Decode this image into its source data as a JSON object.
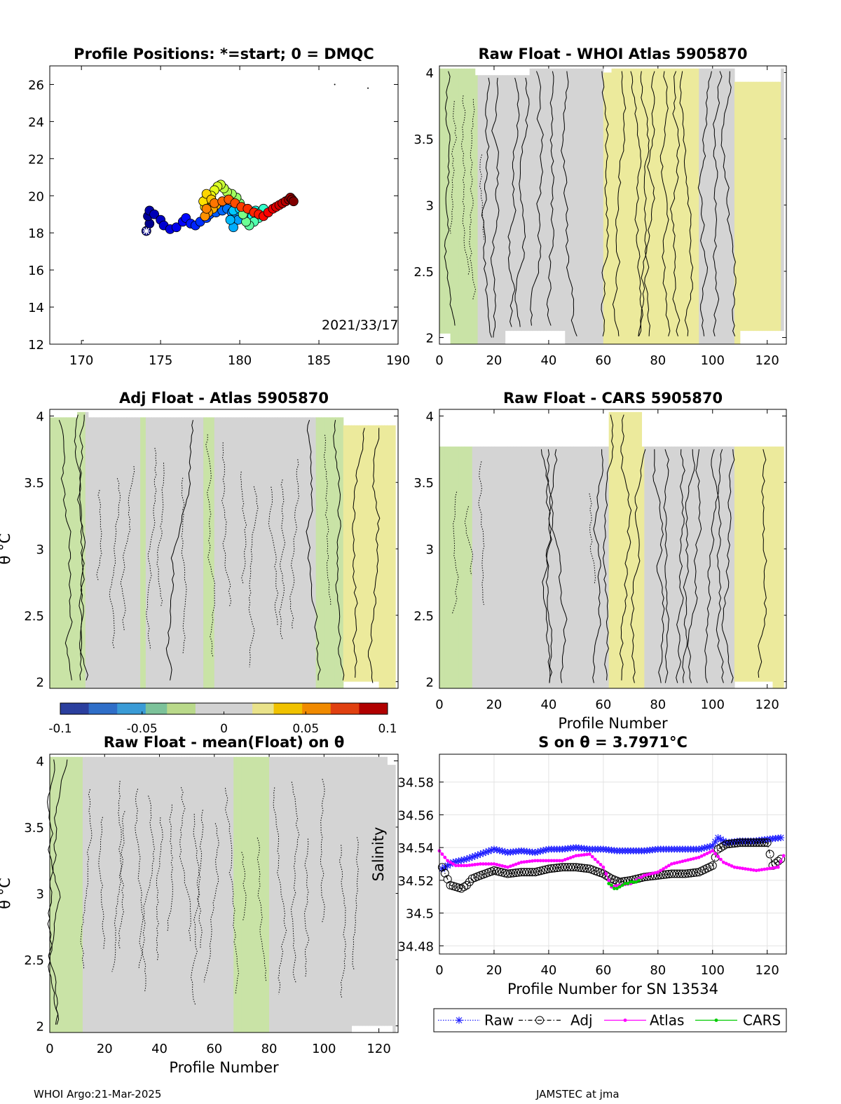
{
  "figure": {
    "footer_left": "WHOI Argo:21-Mar-2025",
    "footer_right": "JAMSTEC at jma"
  },
  "colors": {
    "raw": "#2222ff",
    "adj": "#000000",
    "atlas": "#ff00ff",
    "cars": "#00cc00",
    "field_gray": "#d4d4d4",
    "field_green": "#c9e3a6",
    "field_yellow": "#ecea9c"
  },
  "chart_data": [
    {
      "id": "positions",
      "type": "scatter",
      "title": "Profile Positions: *=start; 0 = DMQC",
      "xlim": [
        168,
        190
      ],
      "ylim": [
        12,
        27
      ],
      "xticks": [
        170,
        175,
        180,
        185,
        190
      ],
      "yticks": [
        12,
        14,
        16,
        18,
        20,
        22,
        24,
        26
      ],
      "annotation": "2021/33/17",
      "start_marker": {
        "x": 174.1,
        "y": 18.1
      },
      "track": [
        [
          174.1,
          18.1
        ],
        [
          174.3,
          18.5
        ],
        [
          174.2,
          18.9
        ],
        [
          174.3,
          19.2
        ],
        [
          174.6,
          19.0
        ],
        [
          175.0,
          18.7
        ],
        [
          175.2,
          18.4
        ],
        [
          175.6,
          18.2
        ],
        [
          176.0,
          18.3
        ],
        [
          176.4,
          18.6
        ],
        [
          176.6,
          18.8
        ],
        [
          176.9,
          18.5
        ],
        [
          177.2,
          18.4
        ],
        [
          177.5,
          18.6
        ],
        [
          177.9,
          18.8
        ],
        [
          178.1,
          19.0
        ],
        [
          178.5,
          19.1
        ],
        [
          178.9,
          19.2
        ],
        [
          179.2,
          19.3
        ],
        [
          179.5,
          19.1
        ],
        [
          179.8,
          19.0
        ],
        [
          179.9,
          18.7
        ],
        [
          179.6,
          18.3
        ],
        [
          179.4,
          18.7
        ],
        [
          179.6,
          19.2
        ],
        [
          180.0,
          19.3
        ],
        [
          180.4,
          19.2
        ],
        [
          180.6,
          18.9
        ],
        [
          180.7,
          18.6
        ],
        [
          180.8,
          18.9
        ],
        [
          181.0,
          19.2
        ],
        [
          181.3,
          19.1
        ],
        [
          181.5,
          19.3
        ],
        [
          181.2,
          18.8
        ],
        [
          180.9,
          18.6
        ],
        [
          180.6,
          18.4
        ],
        [
          180.4,
          18.6
        ],
        [
          180.2,
          19.0
        ],
        [
          180.0,
          19.6
        ],
        [
          179.8,
          19.9
        ],
        [
          179.5,
          20.1
        ],
        [
          179.2,
          20.2
        ],
        [
          179.0,
          20.4
        ],
        [
          178.8,
          20.6
        ],
        [
          178.6,
          20.5
        ],
        [
          178.4,
          20.3
        ],
        [
          178.2,
          20.0
        ],
        [
          178.0,
          19.7
        ],
        [
          177.8,
          19.4
        ],
        [
          177.7,
          19.7
        ],
        [
          177.9,
          20.1
        ],
        [
          178.2,
          19.8
        ],
        [
          178.5,
          19.5
        ],
        [
          178.3,
          19.3
        ],
        [
          178.0,
          19.1
        ],
        [
          177.8,
          18.9
        ],
        [
          177.9,
          19.3
        ],
        [
          178.4,
          19.6
        ],
        [
          178.9,
          19.7
        ],
        [
          179.3,
          19.8
        ],
        [
          179.7,
          19.6
        ],
        [
          180.1,
          19.4
        ],
        [
          180.5,
          19.3
        ],
        [
          180.9,
          19.1
        ],
        [
          181.2,
          19.0
        ],
        [
          181.5,
          18.9
        ],
        [
          181.8,
          19.1
        ],
        [
          182.1,
          19.3
        ],
        [
          182.3,
          19.4
        ],
        [
          182.5,
          19.5
        ],
        [
          182.7,
          19.6
        ],
        [
          182.9,
          19.7
        ],
        [
          183.1,
          19.8
        ],
        [
          183.2,
          19.9
        ],
        [
          183.3,
          19.8
        ],
        [
          183.4,
          19.7
        ]
      ],
      "stray_points": [
        [
          186.0,
          26.0
        ],
        [
          188.1,
          25.8
        ],
        [
          170.1,
          12.2
        ]
      ]
    },
    {
      "id": "raw-atlas",
      "type": "heatmap",
      "title": "Raw Float - WHOI Atlas  5905870",
      "xlim": [
        0,
        127
      ],
      "ylim": [
        1.95,
        4.05
      ],
      "xticks": [
        0,
        20,
        40,
        60,
        80,
        100,
        120
      ],
      "yticks": [
        2,
        2.5,
        3,
        3.5,
        4
      ],
      "ylabel": "",
      "xlabel": ""
    },
    {
      "id": "adj-atlas",
      "type": "heatmap",
      "title": "Adj Float - Atlas  5905870",
      "xlim": [
        0,
        127
      ],
      "ylim": [
        1.95,
        4.05
      ],
      "xticks": [],
      "yticks": [
        2,
        2.5,
        3,
        3.5,
        4
      ],
      "ylabel": "θ °C",
      "xlabel": ""
    },
    {
      "id": "raw-cars",
      "type": "heatmap",
      "title": "Raw Float - CARS  5905870",
      "xlim": [
        0,
        127
      ],
      "ylim": [
        1.95,
        4.05
      ],
      "xticks": [
        0,
        20,
        40,
        60,
        80,
        100,
        120
      ],
      "yticks": [
        2,
        2.5,
        3,
        3.5,
        4
      ],
      "ylabel": "",
      "xlabel": "Profile Number"
    },
    {
      "id": "colorbar",
      "type": "colorbar",
      "range": [
        -0.1,
        0.1
      ],
      "ticks": [
        -0.1,
        -0.05,
        0,
        0.05,
        0.1
      ],
      "tick_labels": [
        "-0.1",
        "-0.05",
        "0",
        "0.05",
        "0.1"
      ]
    },
    {
      "id": "raw-mean",
      "type": "heatmap",
      "title": "Raw Float - mean(Float) on θ",
      "xlim": [
        0,
        127
      ],
      "ylim": [
        1.95,
        4.05
      ],
      "xticks": [
        0,
        20,
        40,
        60,
        80,
        100,
        120
      ],
      "yticks": [
        2,
        2.5,
        3,
        3.5,
        4
      ],
      "ylabel": "θ °C",
      "xlabel": "Profile Number"
    },
    {
      "id": "salinity",
      "type": "line",
      "title": "S on θ = 3.7971°C",
      "xlim": [
        0,
        127
      ],
      "ylim": [
        34.475,
        34.597
      ],
      "xticks": [
        0,
        20,
        40,
        60,
        80,
        100,
        120
      ],
      "yticks": [
        34.48,
        34.5,
        34.52,
        34.54,
        34.56,
        34.58
      ],
      "ytick_labels": [
        "34.48",
        "34.5",
        "34.52",
        "34.54",
        "34.56",
        "34.58"
      ],
      "xlabel": "Profile Number for SN 13534",
      "ylabel": "Salinity",
      "grid": true,
      "legend_placement": "below",
      "series": [
        {
          "name": "Raw",
          "key": "raw",
          "x": [
            1,
            5,
            10,
            15,
            20,
            25,
            30,
            35,
            40,
            45,
            50,
            55,
            60,
            65,
            70,
            75,
            80,
            85,
            90,
            95,
            100,
            102,
            105,
            110,
            115,
            120,
            125
          ],
          "y": [
            34.527,
            34.531,
            34.533,
            34.536,
            34.539,
            34.537,
            34.538,
            34.537,
            34.539,
            34.539,
            34.54,
            34.539,
            34.539,
            34.538,
            34.538,
            34.538,
            34.539,
            34.539,
            34.539,
            34.539,
            34.541,
            34.546,
            34.543,
            34.544,
            34.544,
            34.545,
            34.546
          ]
        },
        {
          "name": "Adj",
          "key": "adj",
          "x": [
            1,
            4,
            6,
            8,
            10,
            12,
            15,
            20,
            25,
            30,
            35,
            40,
            45,
            50,
            55,
            60,
            63,
            66,
            70,
            75,
            80,
            85,
            90,
            95,
            100,
            102,
            105,
            110,
            115,
            120,
            122,
            125
          ],
          "y": [
            34.528,
            34.517,
            34.516,
            34.515,
            34.517,
            34.521,
            34.523,
            34.526,
            34.524,
            34.525,
            34.525,
            34.527,
            34.528,
            34.528,
            34.527,
            34.524,
            34.521,
            34.519,
            34.52,
            34.522,
            34.523,
            34.524,
            34.524,
            34.525,
            34.529,
            34.539,
            34.542,
            34.543,
            34.543,
            34.543,
            34.529,
            34.533
          ]
        },
        {
          "name": "Atlas",
          "key": "atlas",
          "x": [
            0,
            3,
            6,
            10,
            15,
            20,
            25,
            30,
            35,
            40,
            45,
            50,
            55,
            60,
            63,
            66,
            70,
            75,
            80,
            85,
            90,
            95,
            100,
            104,
            108,
            112,
            116,
            120,
            124,
            126
          ],
          "y": [
            34.538,
            34.532,
            34.529,
            34.529,
            34.53,
            34.53,
            34.528,
            34.531,
            34.532,
            34.532,
            34.532,
            34.535,
            34.536,
            34.528,
            34.516,
            34.517,
            34.518,
            34.523,
            34.525,
            34.53,
            34.532,
            34.534,
            34.538,
            34.531,
            34.528,
            34.527,
            34.526,
            34.527,
            34.528,
            34.535
          ]
        },
        {
          "name": "CARS",
          "key": "cars",
          "x": [
            62,
            63,
            64,
            65,
            66,
            67,
            68,
            69,
            70,
            71,
            72,
            73
          ],
          "y": [
            34.518,
            34.517,
            34.515,
            34.515,
            34.516,
            34.517,
            34.518,
            34.518,
            34.519,
            34.519,
            34.519,
            34.52
          ]
        }
      ]
    }
  ]
}
